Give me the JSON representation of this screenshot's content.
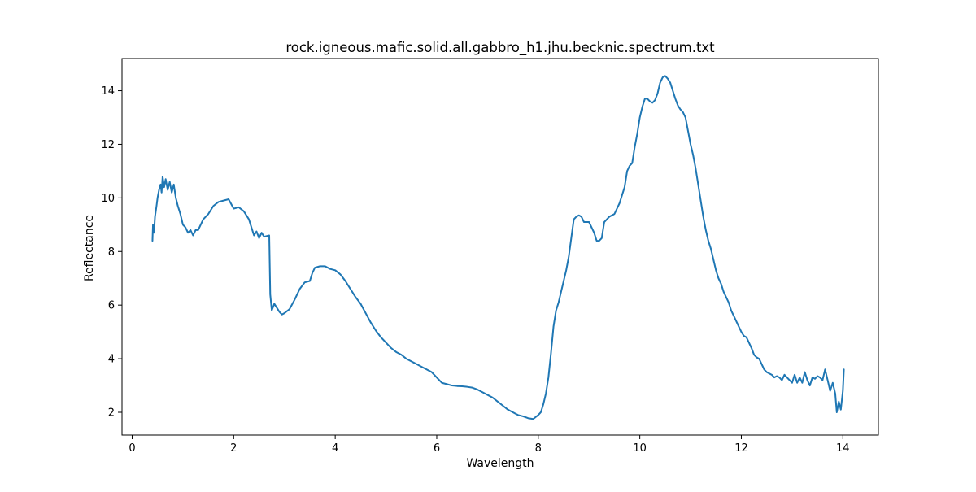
{
  "chart_data": {
    "type": "line",
    "title": "rock.igneous.mafic.solid.all.gabbro_h1.jhu.becknic.spectrum.txt",
    "xlabel": "Wavelength",
    "ylabel": "Reflectance",
    "xlim": [
      -0.2,
      14.7
    ],
    "ylim": [
      1.15,
      15.2
    ],
    "xticks": [
      0,
      2,
      4,
      6,
      8,
      10,
      12,
      14
    ],
    "yticks": [
      2,
      4,
      6,
      8,
      10,
      12,
      14
    ],
    "grid": false,
    "series": [
      {
        "color": "#1f77b4",
        "points": [
          [
            0.4,
            8.4
          ],
          [
            0.41,
            9.0
          ],
          [
            0.43,
            8.7
          ],
          [
            0.45,
            9.3
          ],
          [
            0.48,
            9.7
          ],
          [
            0.5,
            10.0
          ],
          [
            0.53,
            10.3
          ],
          [
            0.56,
            10.5
          ],
          [
            0.58,
            10.2
          ],
          [
            0.6,
            10.8
          ],
          [
            0.63,
            10.4
          ],
          [
            0.66,
            10.7
          ],
          [
            0.7,
            10.3
          ],
          [
            0.74,
            10.6
          ],
          [
            0.78,
            10.2
          ],
          [
            0.82,
            10.5
          ],
          [
            0.86,
            10.0
          ],
          [
            0.9,
            9.7
          ],
          [
            0.95,
            9.4
          ],
          [
            1.0,
            9.0
          ],
          [
            1.05,
            8.9
          ],
          [
            1.1,
            8.7
          ],
          [
            1.15,
            8.8
          ],
          [
            1.2,
            8.6
          ],
          [
            1.25,
            8.8
          ],
          [
            1.3,
            8.8
          ],
          [
            1.4,
            9.2
          ],
          [
            1.5,
            9.4
          ],
          [
            1.6,
            9.7
          ],
          [
            1.7,
            9.85
          ],
          [
            1.8,
            9.9
          ],
          [
            1.9,
            9.95
          ],
          [
            2.0,
            9.6
          ],
          [
            2.1,
            9.65
          ],
          [
            2.2,
            9.5
          ],
          [
            2.3,
            9.2
          ],
          [
            2.4,
            8.6
          ],
          [
            2.45,
            8.75
          ],
          [
            2.5,
            8.5
          ],
          [
            2.55,
            8.7
          ],
          [
            2.6,
            8.55
          ],
          [
            2.7,
            8.6
          ],
          [
            2.72,
            6.4
          ],
          [
            2.75,
            5.8
          ],
          [
            2.8,
            6.05
          ],
          [
            2.85,
            5.9
          ],
          [
            2.9,
            5.75
          ],
          [
            2.95,
            5.65
          ],
          [
            3.0,
            5.7
          ],
          [
            3.1,
            5.85
          ],
          [
            3.2,
            6.2
          ],
          [
            3.3,
            6.6
          ],
          [
            3.4,
            6.85
          ],
          [
            3.5,
            6.9
          ],
          [
            3.55,
            7.2
          ],
          [
            3.6,
            7.4
          ],
          [
            3.7,
            7.45
          ],
          [
            3.8,
            7.45
          ],
          [
            3.9,
            7.35
          ],
          [
            4.0,
            7.3
          ],
          [
            4.1,
            7.15
          ],
          [
            4.2,
            6.9
          ],
          [
            4.3,
            6.6
          ],
          [
            4.4,
            6.3
          ],
          [
            4.5,
            6.05
          ],
          [
            4.6,
            5.7
          ],
          [
            4.7,
            5.35
          ],
          [
            4.8,
            5.05
          ],
          [
            4.9,
            4.8
          ],
          [
            5.0,
            4.6
          ],
          [
            5.1,
            4.4
          ],
          [
            5.2,
            4.25
          ],
          [
            5.3,
            4.15
          ],
          [
            5.4,
            4.0
          ],
          [
            5.5,
            3.9
          ],
          [
            5.6,
            3.8
          ],
          [
            5.7,
            3.7
          ],
          [
            5.8,
            3.6
          ],
          [
            5.9,
            3.5
          ],
          [
            6.0,
            3.3
          ],
          [
            6.1,
            3.1
          ],
          [
            6.2,
            3.05
          ],
          [
            6.3,
            3.0
          ],
          [
            6.4,
            2.98
          ],
          [
            6.5,
            2.97
          ],
          [
            6.6,
            2.95
          ],
          [
            6.7,
            2.92
          ],
          [
            6.8,
            2.85
          ],
          [
            6.9,
            2.75
          ],
          [
            7.0,
            2.65
          ],
          [
            7.1,
            2.55
          ],
          [
            7.2,
            2.4
          ],
          [
            7.3,
            2.25
          ],
          [
            7.4,
            2.1
          ],
          [
            7.5,
            2.0
          ],
          [
            7.6,
            1.9
          ],
          [
            7.7,
            1.85
          ],
          [
            7.8,
            1.78
          ],
          [
            7.9,
            1.75
          ],
          [
            8.0,
            1.9
          ],
          [
            8.05,
            2.0
          ],
          [
            8.1,
            2.3
          ],
          [
            8.15,
            2.7
          ],
          [
            8.2,
            3.3
          ],
          [
            8.25,
            4.2
          ],
          [
            8.3,
            5.2
          ],
          [
            8.35,
            5.8
          ],
          [
            8.4,
            6.1
          ],
          [
            8.45,
            6.5
          ],
          [
            8.5,
            6.9
          ],
          [
            8.55,
            7.3
          ],
          [
            8.6,
            7.8
          ],
          [
            8.65,
            8.5
          ],
          [
            8.7,
            9.2
          ],
          [
            8.75,
            9.3
          ],
          [
            8.8,
            9.35
          ],
          [
            8.85,
            9.3
          ],
          [
            8.9,
            9.1
          ],
          [
            9.0,
            9.1
          ],
          [
            9.1,
            8.7
          ],
          [
            9.15,
            8.4
          ],
          [
            9.2,
            8.4
          ],
          [
            9.25,
            8.5
          ],
          [
            9.3,
            9.1
          ],
          [
            9.4,
            9.3
          ],
          [
            9.5,
            9.4
          ],
          [
            9.6,
            9.8
          ],
          [
            9.7,
            10.4
          ],
          [
            9.75,
            11.0
          ],
          [
            9.8,
            11.2
          ],
          [
            9.85,
            11.3
          ],
          [
            9.9,
            11.9
          ],
          [
            9.95,
            12.4
          ],
          [
            10.0,
            13.0
          ],
          [
            10.05,
            13.4
          ],
          [
            10.1,
            13.7
          ],
          [
            10.15,
            13.7
          ],
          [
            10.2,
            13.6
          ],
          [
            10.25,
            13.55
          ],
          [
            10.3,
            13.65
          ],
          [
            10.35,
            13.9
          ],
          [
            10.4,
            14.3
          ],
          [
            10.45,
            14.5
          ],
          [
            10.5,
            14.55
          ],
          [
            10.55,
            14.45
          ],
          [
            10.6,
            14.3
          ],
          [
            10.65,
            14.0
          ],
          [
            10.7,
            13.7
          ],
          [
            10.75,
            13.45
          ],
          [
            10.8,
            13.3
          ],
          [
            10.85,
            13.2
          ],
          [
            10.9,
            13.0
          ],
          [
            10.95,
            12.5
          ],
          [
            11.0,
            12.0
          ],
          [
            11.05,
            11.6
          ],
          [
            11.1,
            11.1
          ],
          [
            11.15,
            10.5
          ],
          [
            11.2,
            9.9
          ],
          [
            11.25,
            9.3
          ],
          [
            11.3,
            8.8
          ],
          [
            11.35,
            8.4
          ],
          [
            11.4,
            8.1
          ],
          [
            11.45,
            7.7
          ],
          [
            11.5,
            7.3
          ],
          [
            11.55,
            7.0
          ],
          [
            11.6,
            6.8
          ],
          [
            11.65,
            6.5
          ],
          [
            11.7,
            6.3
          ],
          [
            11.75,
            6.1
          ],
          [
            11.8,
            5.8
          ],
          [
            11.85,
            5.6
          ],
          [
            11.9,
            5.4
          ],
          [
            11.95,
            5.2
          ],
          [
            12.0,
            5.0
          ],
          [
            12.05,
            4.85
          ],
          [
            12.1,
            4.8
          ],
          [
            12.15,
            4.6
          ],
          [
            12.2,
            4.4
          ],
          [
            12.25,
            4.15
          ],
          [
            12.3,
            4.05
          ],
          [
            12.35,
            4.0
          ],
          [
            12.4,
            3.8
          ],
          [
            12.45,
            3.6
          ],
          [
            12.5,
            3.5
          ],
          [
            12.55,
            3.45
          ],
          [
            12.6,
            3.4
          ],
          [
            12.65,
            3.3
          ],
          [
            12.7,
            3.35
          ],
          [
            12.75,
            3.3
          ],
          [
            12.8,
            3.2
          ],
          [
            12.85,
            3.4
          ],
          [
            12.9,
            3.3
          ],
          [
            12.95,
            3.2
          ],
          [
            13.0,
            3.1
          ],
          [
            13.05,
            3.4
          ],
          [
            13.1,
            3.1
          ],
          [
            13.15,
            3.3
          ],
          [
            13.2,
            3.1
          ],
          [
            13.25,
            3.5
          ],
          [
            13.3,
            3.2
          ],
          [
            13.35,
            3.0
          ],
          [
            13.4,
            3.3
          ],
          [
            13.45,
            3.25
          ],
          [
            13.5,
            3.35
          ],
          [
            13.55,
            3.3
          ],
          [
            13.6,
            3.2
          ],
          [
            13.65,
            3.6
          ],
          [
            13.7,
            3.2
          ],
          [
            13.75,
            2.8
          ],
          [
            13.8,
            3.1
          ],
          [
            13.85,
            2.7
          ],
          [
            13.88,
            2.0
          ],
          [
            13.92,
            2.4
          ],
          [
            13.96,
            2.1
          ],
          [
            14.0,
            2.8
          ],
          [
            14.02,
            3.6
          ]
        ]
      }
    ]
  }
}
